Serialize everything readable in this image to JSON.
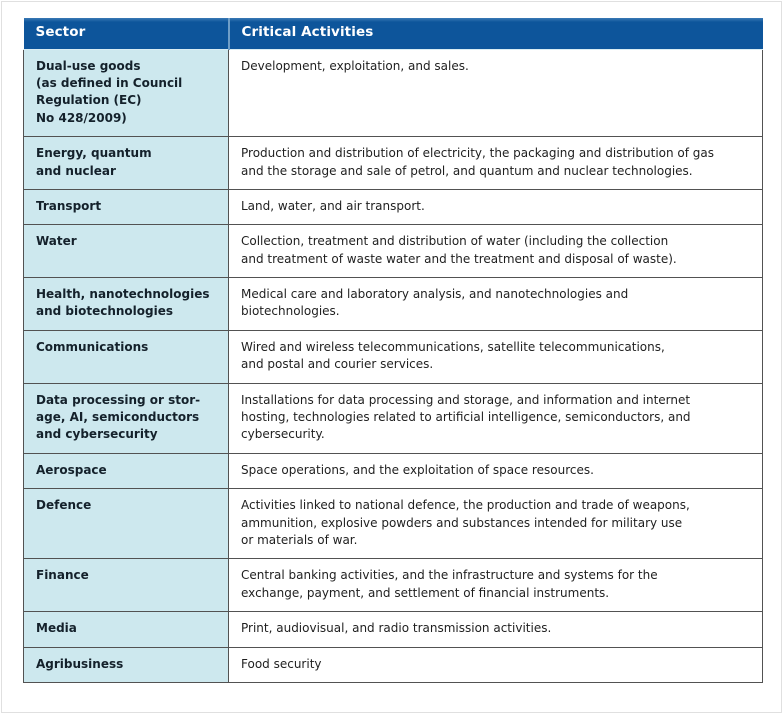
{
  "colors": {
    "header_background": "#0d559b",
    "header_text": "#ffffff",
    "header_divider": "#6f9ec7",
    "sector_cell_background": "#cde8ee",
    "activities_cell_background": "#ffffff",
    "grid_border": "#525252",
    "sector_text": "#14212b",
    "activities_text": "#1f1f1f"
  },
  "table": {
    "columns": [
      {
        "label": "Sector"
      },
      {
        "label": "Critical Activities"
      }
    ],
    "rows": [
      {
        "sector": "Dual-use goods\n(as defined in Council\nRegulation (EC)\nNo 428/2009)",
        "activities": "Development, exploitation, and sales."
      },
      {
        "sector": "Energy, quantum\nand nuclear",
        "activities": "Production and distribution of electricity, the packaging and distribution of gas\nand the storage and sale of petrol, and quantum and nuclear technologies."
      },
      {
        "sector": "Transport",
        "activities": "Land, water, and air transport."
      },
      {
        "sector": "Water",
        "activities": "Collection, treatment and distribution of water (including the collection\nand treatment of waste water and the treatment and disposal of waste)."
      },
      {
        "sector": "Health, nanotechnologies\nand biotechnologies",
        "activities": "Medical care and laboratory analysis, and nanotechnologies and\nbiotechnologies."
      },
      {
        "sector": "Communications",
        "activities": "Wired and wireless telecommunications, satellite telecommunications,\nand postal and courier services."
      },
      {
        "sector": "Data processing or stor-\nage, AI, semiconductors\nand cybersecurity",
        "activities": "Installations for data processing and storage, and information and internet\nhosting, technologies related to artificial intelligence, semiconductors, and\ncybersecurity."
      },
      {
        "sector": "Aerospace",
        "activities": "Space operations, and the exploitation of space resources."
      },
      {
        "sector": "Defence",
        "activities": "Activities linked to national defence, the production and trade of weapons,\nammunition, explosive powders and substances intended for military use\nor materials of war."
      },
      {
        "sector": "Finance",
        "activities": "Central banking activities, and the infrastructure and systems for the\nexchange, payment, and settlement of financial instruments."
      },
      {
        "sector": "Media",
        "activities": "Print, audiovisual, and radio transmission activities."
      },
      {
        "sector": "Agribusiness",
        "activities": "Food security"
      }
    ]
  }
}
